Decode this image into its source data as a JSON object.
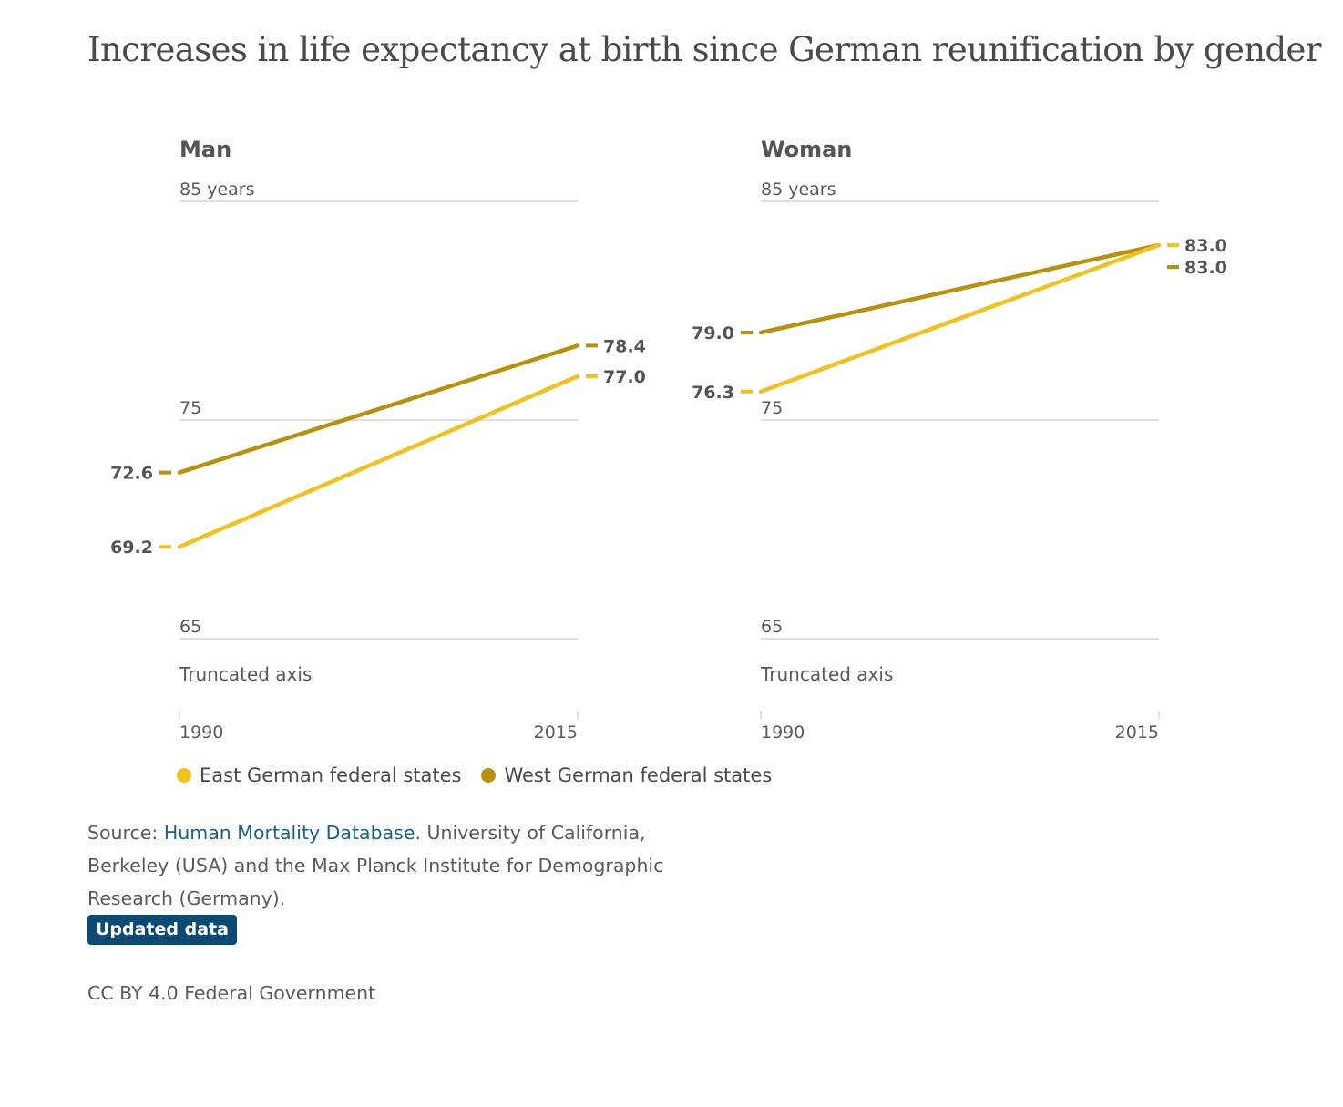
{
  "colors": {
    "east": "#f2c11c",
    "west": "#b8900a",
    "grid": "#cfcfcf",
    "text": "#5a5a5a",
    "link": "#1a5d8f",
    "badge_bg": "#0d4a73"
  },
  "chart_data": [
    {
      "type": "line",
      "title": "Increases in life expectancy at birth since German reunification by gender",
      "subtitle": "Man",
      "x": [
        "1990",
        "2015"
      ],
      "y_ticks": [
        {
          "value": 85,
          "label": "85 years"
        },
        {
          "value": 75,
          "label": "75"
        },
        {
          "value": 65,
          "label": "65"
        }
      ],
      "ylim": [
        65,
        85
      ],
      "axis_note": "Truncated axis",
      "series": [
        {
          "name": "East German federal states",
          "key": "east",
          "values": [
            69.2,
            77.0
          ],
          "labels": [
            "69.2",
            "77.0"
          ]
        },
        {
          "name": "West German federal states",
          "key": "west",
          "values": [
            72.6,
            78.4
          ],
          "labels": [
            "72.6",
            "78.4"
          ]
        }
      ]
    },
    {
      "type": "line",
      "subtitle": "Woman",
      "x": [
        "1990",
        "2015"
      ],
      "y_ticks": [
        {
          "value": 85,
          "label": "85 years"
        },
        {
          "value": 75,
          "label": "75"
        },
        {
          "value": 65,
          "label": "65"
        }
      ],
      "ylim": [
        65,
        85
      ],
      "axis_note": "Truncated axis",
      "series": [
        {
          "name": "East German federal states",
          "key": "east",
          "values": [
            76.3,
            83.0
          ],
          "labels": [
            "76.3",
            "83.0"
          ]
        },
        {
          "name": "West German federal states",
          "key": "west",
          "values": [
            79.0,
            83.0
          ],
          "labels": [
            "79.0",
            "83.0"
          ]
        }
      ]
    }
  ],
  "legend": {
    "east_label": "East German federal states",
    "west_label": "West German federal states"
  },
  "source": {
    "prefix": "Source: ",
    "link_text": "Human Mortality Database.",
    "rest": " University of California, Berkeley (USA) and the Max Planck Institute for Demographic Research (Germany)."
  },
  "badge_label": "Updated data",
  "license": "CC BY 4.0 Federal Government"
}
